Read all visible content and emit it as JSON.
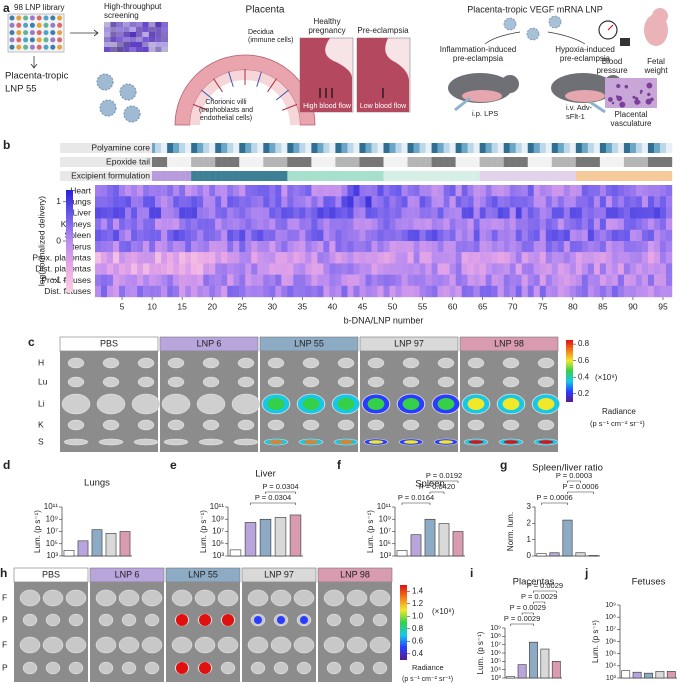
{
  "panel_a": {
    "label": "a",
    "library": "98 LNP library",
    "screening": [
      "High-throughput",
      "screening"
    ],
    "lead": [
      "Placenta-tropic",
      "LNP 55"
    ],
    "placenta": "Placenta",
    "decidua": [
      "Decidua",
      "(immune cells)"
    ],
    "villi": [
      "Chorionic villi",
      "(trophoblasts and",
      "endothelial cells)"
    ],
    "healthy": [
      "Healthy",
      "pregnancy"
    ],
    "preeclampsia": "Pre-eclampsia",
    "high_flow": "High blood flow",
    "low_flow": "Low blood flow",
    "vegf": "Placenta-tropic VEGF mRNA LNP",
    "inflammation": [
      "Inflammation-induced",
      "pre-eclampsia"
    ],
    "hypoxia": [
      "Hypoxia-induced",
      "pre-eclampsia"
    ],
    "lps": "i.p. LPS",
    "adv": [
      "i.v. Adv-",
      "sFlt-1"
    ],
    "bp": [
      "Blood",
      "pressure"
    ],
    "fw": [
      "Fetal",
      "weight"
    ],
    "pv": [
      "Placental",
      "vasculature"
    ]
  },
  "panel_b": {
    "label": "b",
    "annotation_rows": [
      "Polyamine core",
      "Epoxide tail",
      "Excipient formulation"
    ],
    "rows": [
      "Heart",
      "Lungs",
      "Liver",
      "Kidneys",
      "Spleen",
      "Uterus",
      "Prox. placentas",
      "Dist. placentas",
      "Prox. fetuses",
      "Dist. fetuses"
    ],
    "colorbar_title": "log(normalized delivery)",
    "colorbar_lim": [
      -1.3,
      1.3
    ],
    "colorbar_ticks": [
      1,
      0,
      {
        "value": -1,
        "label": "−1"
      }
    ],
    "xlim": [
      0.5,
      96.5
    ],
    "xticks": [
      5,
      10,
      15,
      20,
      25,
      30,
      35,
      40,
      45,
      50,
      55,
      60,
      65,
      70,
      75,
      80,
      85,
      90,
      95
    ],
    "xlabel": "b-DNA/LNP number"
  },
  "panel_c": {
    "label": "c",
    "groups": [
      "PBS",
      "LNP 6",
      "LNP 55",
      "LNP 97",
      "LNP 98"
    ],
    "organs": [
      "H",
      "Lu",
      "Li",
      "K",
      "S"
    ],
    "colorbar_lim": [
      0.1,
      0.85
    ],
    "colorbar_ticks": [
      0.8,
      0.6,
      0.4,
      0.2
    ],
    "scale": "(×10⁹)",
    "radiance": "Radiance",
    "units": "(p s⁻¹ cm⁻² sr⁻¹)"
  },
  "panel_h": {
    "label": "h",
    "groups": [
      "PBS",
      "LNP 6",
      "LNP 55",
      "LNP 97",
      "LNP 98"
    ],
    "rows": [
      "F",
      "P",
      "F",
      "P"
    ],
    "colorbar_lim": [
      0.3,
      1.5
    ],
    "colorbar_ticks": [
      1.4,
      1.2,
      {
        "value": 1,
        "label": "1.0"
      },
      0.8,
      0.6,
      0.4
    ],
    "scale": "(×10⁸)",
    "radiance": "Radiance",
    "units": "(p s⁻¹ cm⁻² sr⁻¹)"
  },
  "chart_data": [
    {
      "type": "bar",
      "panel": "d",
      "title": "Lungs",
      "ylabel": "Lum. (p s⁻¹)",
      "log": true,
      "ylim": [
        1000,
        100000000000
      ],
      "yticks": [
        {
          "value": 1000,
          "label": "10³"
        },
        {
          "value": 100000,
          "label": "10⁵"
        },
        {
          "value": 10000000,
          "label": "10⁷"
        },
        {
          "value": 1000000000,
          "label": "10⁹"
        },
        {
          "value": 100000000000,
          "label": "10¹¹"
        }
      ],
      "values": [
        8000,
        300000,
        20000000,
        5000000,
        10000000
      ],
      "colors": [
        "#ffffff",
        "#b8a5dc",
        "#8eabc6",
        "#d9d9d9",
        "#d89bb0"
      ],
      "annotations": []
    },
    {
      "type": "bar",
      "panel": "e",
      "title": "Liver",
      "ylabel": "Lum. (p s⁻¹)",
      "log": true,
      "ylim": [
        1000,
        100000000000
      ],
      "yticks": [
        {
          "value": 1000,
          "label": "10³"
        },
        {
          "value": 100000,
          "label": "10⁵"
        },
        {
          "value": 10000000,
          "label": "10⁷"
        },
        {
          "value": 1000000000,
          "label": "10⁹"
        },
        {
          "value": 100000000000,
          "label": "10¹¹"
        }
      ],
      "values": [
        10000,
        300000000,
        1000000000,
        2000000000,
        5000000000
      ],
      "colors": [
        "#ffffff",
        "#b8a5dc",
        "#8eabc6",
        "#d9d9d9",
        "#d89bb0"
      ],
      "annotations": [
        "P = 0.0304",
        "P = 0.0304"
      ]
    },
    {
      "type": "bar",
      "panel": "f",
      "title": "Spleen",
      "ylabel": "Lum. (p s⁻¹)",
      "log": true,
      "ylim": [
        1000,
        100000000000
      ],
      "yticks": [
        {
          "value": 1000,
          "label": "10³"
        },
        {
          "value": 100000,
          "label": "10⁵"
        },
        {
          "value": 10000000,
          "label": "10⁷"
        },
        {
          "value": 1000000000,
          "label": "10⁹"
        },
        {
          "value": 100000000000,
          "label": "10¹¹"
        }
      ],
      "values": [
        8000,
        3000000,
        1000000000,
        200000000,
        10000000
      ],
      "colors": [
        "#ffffff",
        "#b8a5dc",
        "#8eabc6",
        "#d9d9d9",
        "#d89bb0"
      ],
      "annotations": [
        "P = 0.0164",
        "P = 0.0420",
        "P = 0.0192"
      ]
    },
    {
      "type": "bar",
      "panel": "g",
      "title": "Spleen/liver ratio",
      "ylabel": "Norm. lum.",
      "log": false,
      "ylim": [
        0,
        3
      ],
      "yticks": [
        0,
        1,
        2,
        3
      ],
      "values": [
        0.15,
        0.2,
        2.2,
        0.2,
        0.03
      ],
      "colors": [
        "#ffffff",
        "#b8a5dc",
        "#8eabc6",
        "#d9d9d9",
        "#d89bb0"
      ],
      "annotations": [
        "P = 0.0006",
        "P = 0.0006",
        "P = 0.0003"
      ]
    },
    {
      "type": "bar",
      "panel": "i",
      "title": "Placentas",
      "ylabel": "Lum. (p s⁻¹)",
      "log": true,
      "ylim": [
        1000,
        1000000000
      ],
      "yticks": [
        {
          "value": 1000,
          "label": "10³"
        },
        {
          "value": 10000,
          "label": "10⁴"
        },
        {
          "value": 100000,
          "label": "10⁵"
        },
        {
          "value": 1000000,
          "label": "10⁶"
        },
        {
          "value": 10000000,
          "label": "10⁷"
        },
        {
          "value": 100000000,
          "label": "10⁸"
        },
        {
          "value": 1000000000,
          "label": "10⁹"
        }
      ],
      "values": [
        1500,
        40000,
        20000000,
        3000000,
        100000
      ],
      "colors": [
        "#ffffff",
        "#b8a5dc",
        "#8eabc6",
        "#d9d9d9",
        "#d89bb0"
      ],
      "annotations": [
        "P = 0.0029",
        "P = 0.0029",
        "P = 0.0029",
        "P = 0.0029"
      ]
    },
    {
      "type": "bar",
      "panel": "j",
      "title": "Fetuses",
      "ylabel": "Lum. (p s⁻¹)",
      "log": true,
      "ylim": [
        1000,
        1000000000
      ],
      "yticks": [
        {
          "value": 1000,
          "label": "10³"
        },
        {
          "value": 10000,
          "label": "10⁴"
        },
        {
          "value": 100000,
          "label": "10⁵"
        },
        {
          "value": 1000000,
          "label": "10⁶"
        },
        {
          "value": 10000000,
          "label": "10⁷"
        },
        {
          "value": 100000000,
          "label": "10⁸"
        },
        {
          "value": 1000000000,
          "label": "10⁹"
        }
      ],
      "values": [
        4000,
        3000,
        2500,
        3500,
        3500
      ],
      "colors": [
        "#ffffff",
        "#b8a5dc",
        "#8eabc6",
        "#d9d9d9",
        "#d89bb0"
      ],
      "annotations": []
    }
  ]
}
